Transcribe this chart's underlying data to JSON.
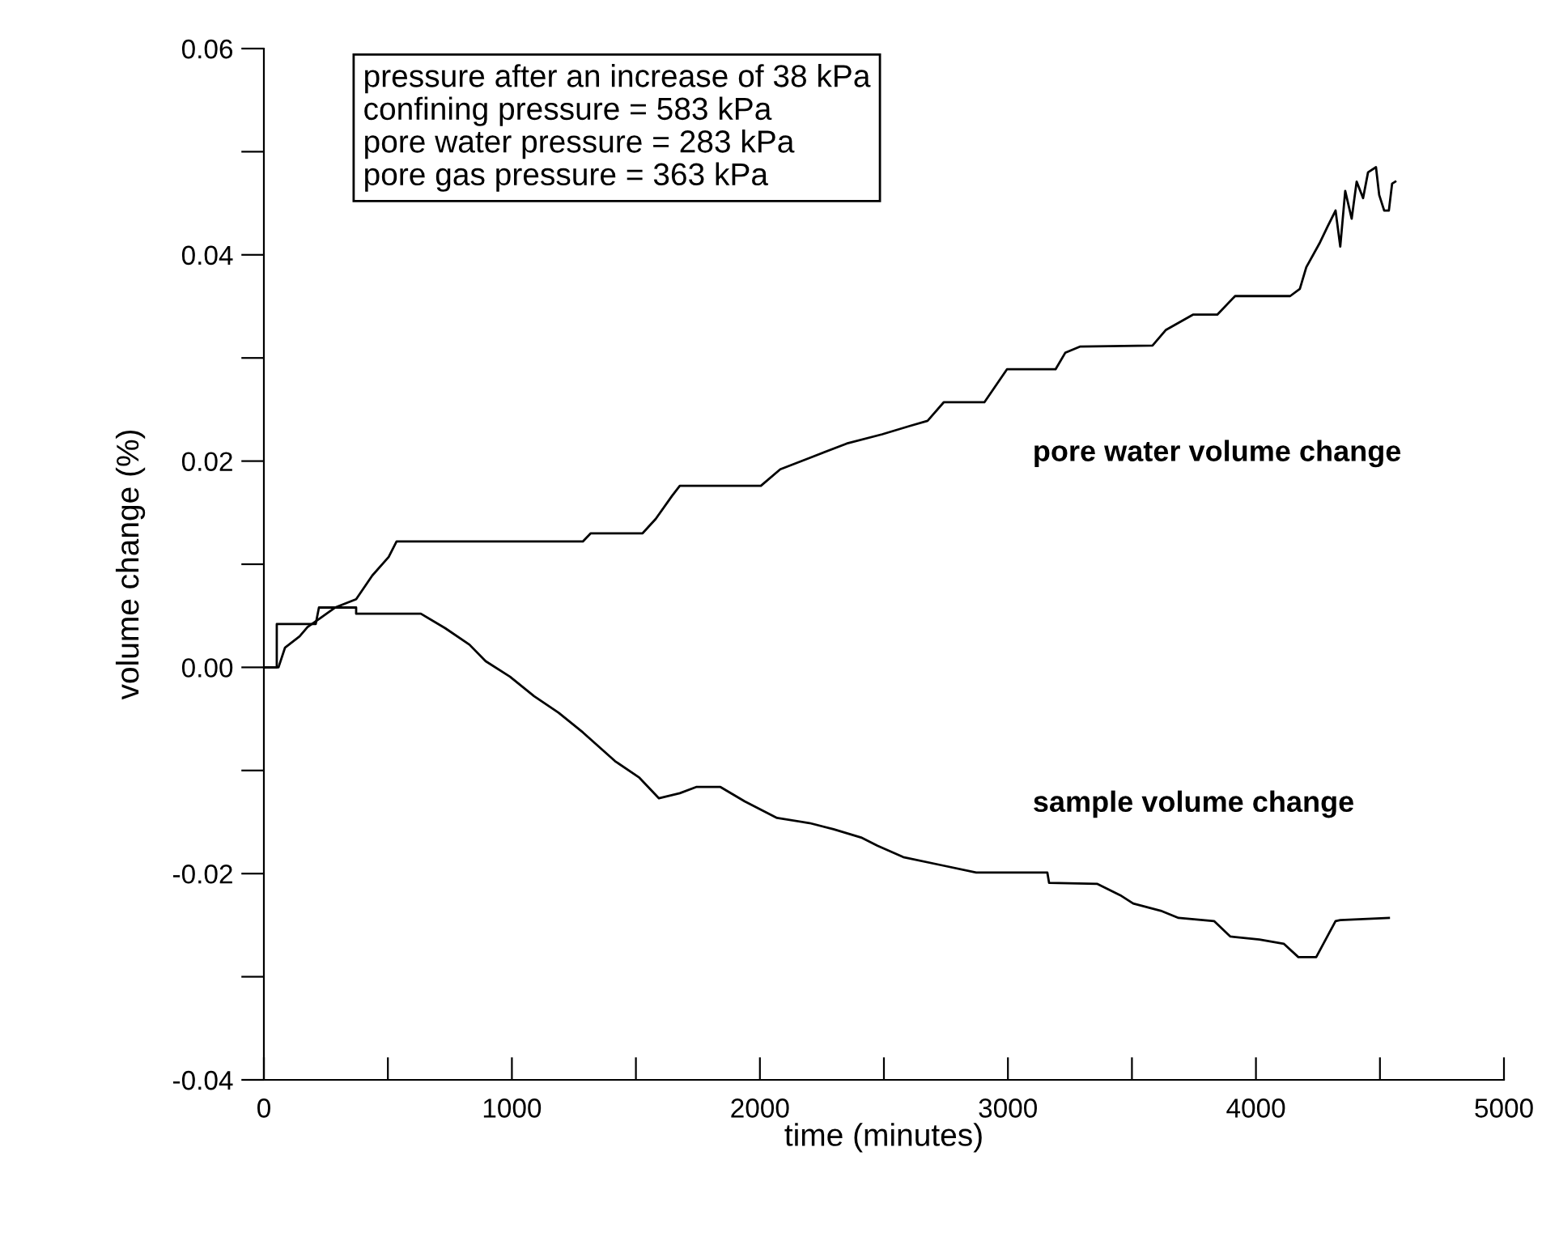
{
  "chart_data": {
    "type": "line",
    "xlabel": "time (minutes)",
    "ylabel": "volume change (%)",
    "annotations": [
      "pressure after an increase of 38 kPa\nconfining pressure = 583 kPa\npore water pressure = 283 kPa\npore gas pressure = 363 kPa"
    ],
    "xlim": [
      0,
      5000
    ],
    "ylim": [
      -0.04,
      0.06
    ],
    "xticks": [
      0,
      {
        "value": 500,
        "label": null
      },
      1000,
      {
        "value": 1500,
        "label": null
      },
      2000,
      {
        "value": 2500,
        "label": null
      },
      3000,
      {
        "value": 3500,
        "label": null
      },
      4000,
      {
        "value": 4500,
        "label": null
      },
      5000
    ],
    "yticks": [
      {
        "value": -0.04,
        "label": "-0.04"
      },
      {
        "value": -0.03,
        "label": null
      },
      {
        "value": -0.02,
        "label": "-0.02"
      },
      {
        "value": -0.01,
        "label": null
      },
      {
        "value": 0,
        "label": "0.00"
      },
      {
        "value": 0.01,
        "label": null
      },
      {
        "value": 0.02,
        "label": "0.02"
      },
      {
        "value": 0.03,
        "label": null
      },
      {
        "value": 0.04,
        "label": "0.04"
      },
      {
        "value": 0.05,
        "label": null
      },
      {
        "value": 0.06,
        "label": "0.06"
      }
    ],
    "grid": false,
    "legend": false,
    "line_style": "solid",
    "marker": "none",
    "series": [
      {
        "name": "pore water volume change",
        "color": "#000000",
        "x": [
          0,
          59,
          85,
          144,
          176,
          241,
          287,
          372,
          437,
          503,
          535,
          1286,
          1318,
          1527,
          1580,
          1645,
          1677,
          2004,
          2082,
          2200,
          2350,
          2493,
          2604,
          2676,
          2741,
          2905,
          2996,
          3192,
          3231,
          3290,
          3583,
          3636,
          3746,
          3844,
          3916,
          4138,
          4177,
          4203,
          4256,
          4288,
          4321,
          4340,
          4360,
          4386,
          4406,
          4432,
          4452,
          4484,
          4497,
          4517,
          4536,
          4549,
          4562
        ],
        "values": [
          0,
          0,
          0.0019,
          0.003,
          0.0039,
          0.005,
          0.0058,
          0.0066,
          0.0089,
          0.0107,
          0.0122,
          0.0122,
          0.013,
          0.013,
          0.0144,
          0.0166,
          0.0176,
          0.0176,
          0.0192,
          0.0203,
          0.0217,
          0.0226,
          0.0234,
          0.0239,
          0.0257,
          0.0257,
          0.0289,
          0.0289,
          0.0305,
          0.0311,
          0.0312,
          0.0327,
          0.0342,
          0.0342,
          0.036,
          0.036,
          0.0367,
          0.0388,
          0.0411,
          0.0427,
          0.0443,
          0.0408,
          0.0462,
          0.0435,
          0.0471,
          0.0455,
          0.048,
          0.0485,
          0.0458,
          0.0443,
          0.0443,
          0.0469,
          0.0471
        ]
      },
      {
        "name": "sample volume change",
        "color": "#000000",
        "x": [
          0,
          52,
          52,
          209,
          222,
          372,
          372,
          633,
          731,
          829,
          894,
          992,
          1090,
          1188,
          1286,
          1416,
          1514,
          1593,
          1677,
          1743,
          1841,
          1939,
          2069,
          2200,
          2297,
          2408,
          2474,
          2578,
          2735,
          2872,
          3159,
          3166,
          3361,
          3453,
          3505,
          3616,
          3688,
          3831,
          3897,
          4014,
          4112,
          4171,
          4243,
          4321,
          4340,
          4536
        ],
        "values": [
          0,
          0,
          0.0042,
          0.0042,
          0.0058,
          0.0058,
          0.0052,
          0.0052,
          0.0038,
          0.0022,
          0.0006,
          -0.0009,
          -0.0028,
          -0.0044,
          -0.0063,
          -0.0091,
          -0.0107,
          -0.0127,
          -0.0122,
          -0.0116,
          -0.0116,
          -0.013,
          -0.0146,
          -0.0151,
          -0.0157,
          -0.0165,
          -0.0173,
          -0.0184,
          -0.0192,
          -0.0199,
          -0.0199,
          -0.0209,
          -0.021,
          -0.0221,
          -0.0229,
          -0.0236,
          -0.0243,
          -0.0246,
          -0.0261,
          -0.0264,
          -0.0268,
          -0.0281,
          -0.0281,
          -0.0246,
          -0.0245,
          -0.0243
        ]
      }
    ]
  }
}
